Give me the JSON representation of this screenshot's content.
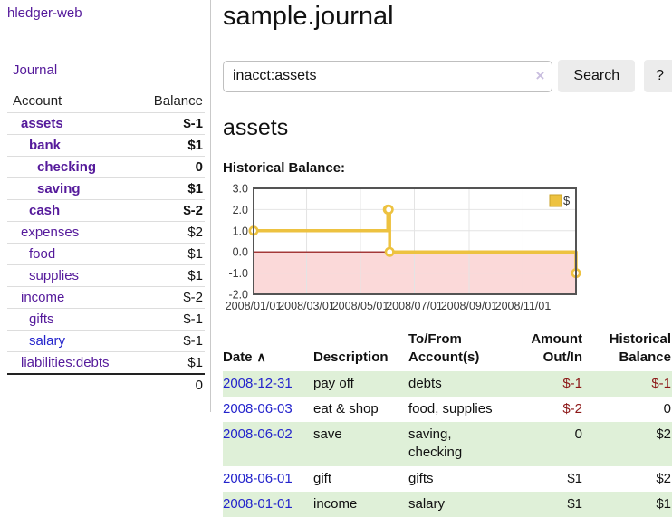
{
  "colors": {
    "link_purple": "#551a9b",
    "link_blue": "#2424cc",
    "negative_strong": "#8c1717",
    "negative_soft": "#bf7e7e",
    "row_green": "#dff0d8",
    "chart_line": "#EDC240",
    "chart_negative_region": "#fbd9d9",
    "chart_zero_line": "#8b0000"
  },
  "sidebar": {
    "app_title": "hledger-web",
    "journal_link": "Journal",
    "table": {
      "account_header": "Account",
      "balance_header": "Balance",
      "total": "0"
    },
    "accounts": [
      {
        "name": "assets",
        "depth": 1,
        "bold": true,
        "balance": "$-1",
        "balance_style": "neg"
      },
      {
        "name": "bank",
        "depth": 2,
        "bold": true,
        "balance": "$1",
        "balance_style": ""
      },
      {
        "name": "checking",
        "depth": 3,
        "bold": true,
        "balance": "0",
        "balance_style": ""
      },
      {
        "name": "saving",
        "depth": 3,
        "bold": true,
        "balance": "$1",
        "balance_style": ""
      },
      {
        "name": "cash",
        "depth": 2,
        "bold": true,
        "balance": "$-2",
        "balance_style": "neg"
      },
      {
        "name": "expenses",
        "depth": 1,
        "bold": false,
        "balance": "$2",
        "balance_style": ""
      },
      {
        "name": "food",
        "depth": 2,
        "bold": false,
        "balance": "$1",
        "balance_style": ""
      },
      {
        "name": "supplies",
        "depth": 2,
        "bold": false,
        "balance": "$1",
        "balance_style": ""
      },
      {
        "name": "income",
        "depth": 1,
        "bold": false,
        "balance": "$-2",
        "balance_style": "neg-soft"
      },
      {
        "name": "gifts",
        "depth": 2,
        "bold": false,
        "balance": "$-1",
        "balance_style": "neg-soft"
      },
      {
        "name": "salary",
        "depth": 2,
        "bold": false,
        "blue": true,
        "balance": "$-1",
        "balance_style": "neg-soft"
      },
      {
        "name": "liabilities:debts",
        "depth": 1,
        "bold": false,
        "balance": "$1",
        "balance_style": ""
      }
    ]
  },
  "main": {
    "title": "sample.journal",
    "search": {
      "value": "inacct:assets",
      "clear_icon": "×",
      "button_label": "Search",
      "help_label": "?"
    },
    "account_heading": "assets",
    "chart_label": "Historical Balance:"
  },
  "chart_data": {
    "type": "line",
    "title": "Historical Balance",
    "steps": true,
    "series": [
      {
        "name": "$",
        "color": "#EDC240",
        "points": [
          [
            "2008-01-01",
            1
          ],
          [
            "2008-06-01",
            2
          ],
          [
            "2008-06-02",
            2
          ],
          [
            "2008-06-03",
            0
          ],
          [
            "2008-12-31",
            -1
          ]
        ]
      }
    ],
    "xrange": [
      "2008-01-01",
      "2008-12-31"
    ],
    "ylim": [
      -2,
      3
    ],
    "yticks": [
      "3.0",
      "2.0",
      "1.0",
      "0.0",
      "-1.0",
      "-2.0"
    ],
    "xticks": [
      {
        "label": "2008/01/01",
        "date": "2008-01-01"
      },
      {
        "label": "2008/03/01",
        "date": "2008-03-01"
      },
      {
        "label": "2008/05/01",
        "date": "2008-05-01"
      },
      {
        "label": "2008/07/01",
        "date": "2008-07-01"
      },
      {
        "label": "2008/09/01",
        "date": "2008-09-01"
      },
      {
        "label": "2008/11/01",
        "date": "2008-11-01"
      }
    ],
    "legend": {
      "label": "$",
      "position": "top-right"
    },
    "grid": true
  },
  "register": {
    "headers": {
      "date": "Date",
      "sort_indicator": "∧",
      "description": "Description",
      "accounts": "To/From Account(s)",
      "amount": "Amount Out/In",
      "balance": "Historical Balance"
    },
    "rows": [
      {
        "date": "2008-12-31",
        "description": "pay off",
        "accounts": "debts",
        "amount": "$-1",
        "amount_neg": true,
        "balance": "$-1",
        "balance_neg": true,
        "green": true
      },
      {
        "date": "2008-06-03",
        "description": "eat & shop",
        "accounts": "food, supplies",
        "amount": "$-2",
        "amount_neg": true,
        "balance": "0",
        "balance_neg": false,
        "green": false
      },
      {
        "date": "2008-06-02",
        "description": "save",
        "accounts": "saving, checking",
        "amount": "0",
        "amount_neg": false,
        "balance": "$2",
        "balance_neg": false,
        "green": true
      },
      {
        "date": "2008-06-01",
        "description": "gift",
        "accounts": "gifts",
        "amount": "$1",
        "amount_neg": false,
        "balance": "$2",
        "balance_neg": false,
        "green": false
      },
      {
        "date": "2008-01-01",
        "description": "income",
        "accounts": "salary",
        "amount": "$1",
        "amount_neg": false,
        "balance": "$1",
        "balance_neg": false,
        "green": true
      }
    ]
  }
}
